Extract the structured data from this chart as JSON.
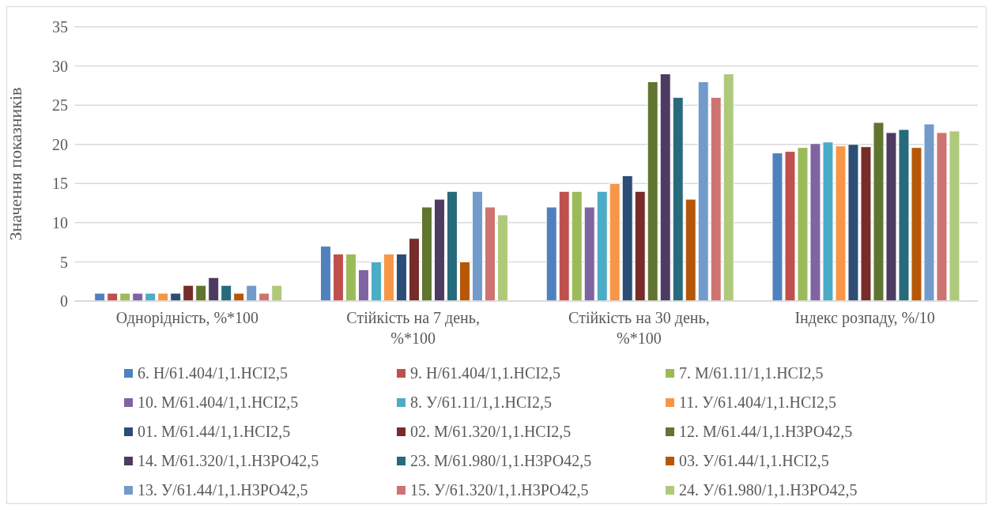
{
  "chart_data": {
    "type": "bar",
    "ylabel": "Значення показників",
    "categories": [
      "Однорідність, %*100",
      "Стійкість на 7 день, %*100",
      "Стійкість на 30 день, %*100",
      "Індекс розпаду, %/10"
    ],
    "series": [
      {
        "name": "6. Н/61.404/1,1.НСІ2,5",
        "color": "#4f81bd",
        "values": [
          1,
          7,
          12,
          18.9
        ]
      },
      {
        "name": "9. Н/61.404/1,1.НСІ2,5",
        "color": "#c0504d",
        "values": [
          1,
          6,
          14,
          19.1
        ]
      },
      {
        "name": "7. М/61.11/1,1.НСІ2,5",
        "color": "#9bbb59",
        "values": [
          1,
          6,
          14,
          19.6
        ]
      },
      {
        "name": "10. М/61.404/1,1.НСІ2,5",
        "color": "#8064a2",
        "values": [
          1,
          4,
          12,
          20.1
        ]
      },
      {
        "name": "8. У/61.11/1,1.НСІ2,5",
        "color": "#4bacc6",
        "values": [
          1,
          5,
          14,
          20.3
        ]
      },
      {
        "name": "11. У/61.404/1,1.НСІ2,5",
        "color": "#f79646",
        "values": [
          1,
          6,
          15,
          19.8
        ]
      },
      {
        "name": "01. М/61.44/1,1.НСІ2,5",
        "color": "#2c4d75",
        "values": [
          1,
          6,
          16,
          20.0
        ]
      },
      {
        "name": "02. М/61.320/1,1.НСІ2,5",
        "color": "#772c2a",
        "values": [
          2,
          8,
          14,
          19.7
        ]
      },
      {
        "name": "12. М/61.44/1,1.Н3РО42,5",
        "color": "#5f7530",
        "values": [
          2,
          12,
          28,
          22.8
        ]
      },
      {
        "name": "14. М/61.320/1,1.Н3РО42,5",
        "color": "#4d3b62",
        "values": [
          3,
          13,
          29,
          21.5
        ]
      },
      {
        "name": "23. М/61.980/1,1.Н3РО42,5",
        "color": "#276a7c",
        "values": [
          2,
          14,
          26,
          21.9
        ]
      },
      {
        "name": "03. У/61.44/1,1.НСІ2,5",
        "color": "#b65708",
        "values": [
          1,
          5,
          13,
          19.6
        ]
      },
      {
        "name": "13. У/61.44/1,1.Н3РО42,5",
        "color": "#729aca",
        "values": [
          2,
          14,
          28,
          22.6
        ]
      },
      {
        "name": "15. У/61.320/1,1.Н3РО42,5",
        "color": "#cd7371",
        "values": [
          1,
          12,
          26,
          21.5
        ]
      },
      {
        "name": "24. У/61.980/1,1.Н3РО42,5",
        "color": "#afc97a",
        "values": [
          2,
          11,
          29,
          21.7
        ]
      }
    ],
    "ylim": [
      0,
      35
    ],
    "yticks": [
      0,
      5,
      10,
      15,
      20,
      25,
      30,
      35
    ],
    "grid": "y",
    "legend": "bottom"
  }
}
